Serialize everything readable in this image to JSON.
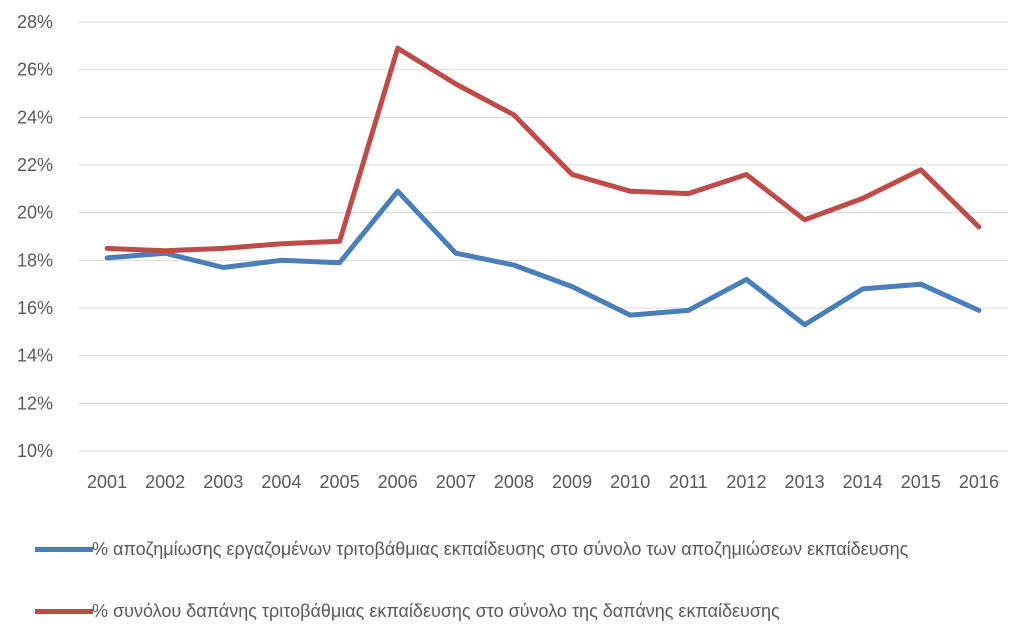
{
  "colors": {
    "series1": "#4a7ebb",
    "series2": "#be4b48",
    "grid": "#d9d9d9",
    "text": "#595959"
  },
  "chart_data": {
    "type": "line",
    "x": [
      "2001",
      "2002",
      "2003",
      "2004",
      "2005",
      "2006",
      "2007",
      "2008",
      "2009",
      "2010",
      "2011",
      "2012",
      "2013",
      "2014",
      "2015",
      "2016"
    ],
    "yticks": [
      "10%",
      "12%",
      "14%",
      "16%",
      "18%",
      "20%",
      "22%",
      "24%",
      "26%",
      "28%"
    ],
    "ylim": [
      10,
      28
    ],
    "grid": true,
    "legend_position": "bottom",
    "series": [
      {
        "name": "% αποζημίωσης εργαζομένων τριτοβάθμιας εκπαίδευσης στο σύνολο των αποζημιώσεων εκπαίδευσης",
        "values": [
          18.1,
          18.3,
          17.7,
          18.0,
          17.9,
          20.9,
          18.3,
          17.8,
          16.9,
          15.7,
          15.9,
          17.2,
          15.3,
          16.8,
          17.0,
          15.9
        ]
      },
      {
        "name": "% συνόλου δαπάνης τριτοβάθμιας εκπαίδευσης στο σύνολο της δαπάνης εκπαίδευσης",
        "values": [
          18.5,
          18.4,
          18.5,
          18.7,
          18.8,
          26.9,
          25.4,
          24.1,
          21.6,
          20.9,
          20.8,
          21.6,
          19.7,
          20.6,
          21.8,
          19.4
        ]
      }
    ]
  }
}
